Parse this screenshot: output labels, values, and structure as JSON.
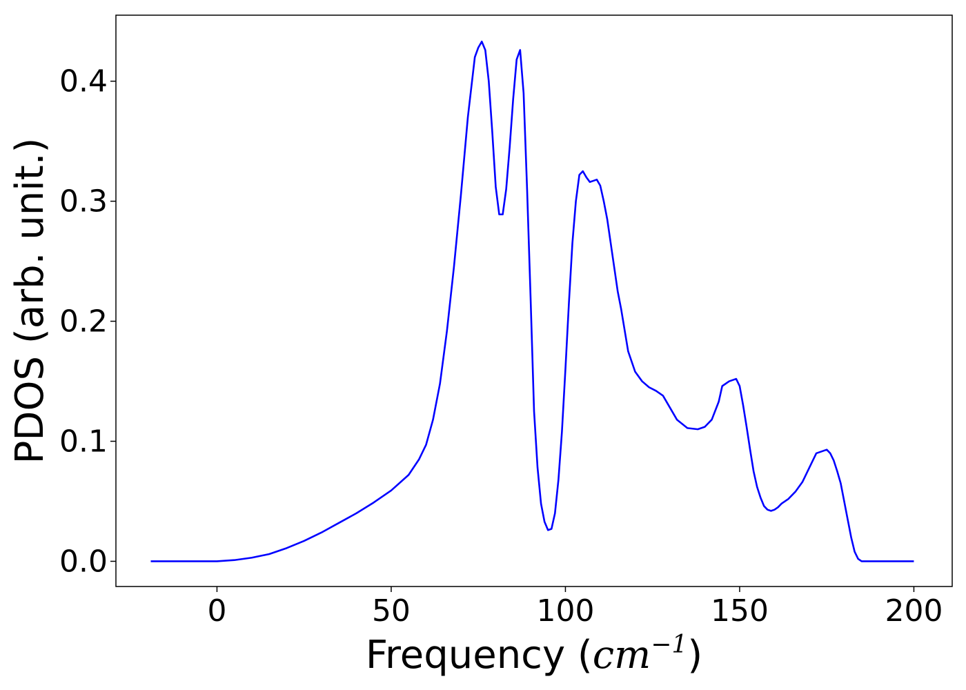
{
  "chart_data": {
    "type": "line",
    "xlabel_prefix": "Frequency (",
    "xlabel_unit_base": "cm",
    "xlabel_unit_exp": "−1",
    "xlabel_suffix": ")",
    "ylabel": "PDOS (arb. unit.)",
    "xlim": [
      -29,
      211
    ],
    "ylim": [
      -0.021,
      0.455
    ],
    "xticks": [
      0,
      50,
      100,
      150,
      200
    ],
    "xtick_labels": [
      "0",
      "50",
      "100",
      "150",
      "200"
    ],
    "yticks": [
      0.0,
      0.1,
      0.2,
      0.3,
      0.4
    ],
    "ytick_labels": [
      "0.0",
      "0.1",
      "0.2",
      "0.3",
      "0.4"
    ],
    "grid": false,
    "series": [
      {
        "color": "#0000ff",
        "x": [
          -19,
          0,
          5,
          10,
          15,
          20,
          25,
          30,
          35,
          40,
          45,
          50,
          55,
          58,
          60,
          62,
          64,
          66,
          68,
          70,
          72,
          74,
          75,
          76,
          77,
          78,
          79,
          80,
          81,
          82,
          83,
          84,
          85,
          86,
          87,
          88,
          89,
          90,
          91,
          92,
          93,
          94,
          95,
          96,
          97,
          98,
          99,
          100,
          101,
          102,
          103,
          104,
          105,
          106,
          107,
          108,
          109,
          110,
          111,
          112,
          113,
          114,
          115,
          116,
          118,
          120,
          122,
          124,
          126,
          128,
          130,
          132,
          135,
          138,
          140,
          142,
          144,
          145,
          147,
          149,
          150,
          151,
          152,
          153,
          154,
          155,
          156,
          157,
          158,
          159,
          160,
          161,
          162,
          164,
          166,
          168,
          170,
          172,
          174,
          175,
          176,
          177,
          178,
          179,
          180,
          181,
          182,
          183,
          184,
          185,
          186,
          188,
          190,
          195,
          200
        ],
        "y": [
          0.0,
          0.0,
          0.001,
          0.003,
          0.006,
          0.011,
          0.017,
          0.024,
          0.032,
          0.04,
          0.049,
          0.059,
          0.072,
          0.085,
          0.097,
          0.118,
          0.148,
          0.192,
          0.245,
          0.305,
          0.37,
          0.42,
          0.428,
          0.433,
          0.426,
          0.4,
          0.358,
          0.312,
          0.289,
          0.289,
          0.31,
          0.345,
          0.385,
          0.418,
          0.426,
          0.39,
          0.31,
          0.22,
          0.125,
          0.078,
          0.048,
          0.033,
          0.026,
          0.027,
          0.04,
          0.068,
          0.108,
          0.16,
          0.215,
          0.265,
          0.3,
          0.322,
          0.325,
          0.32,
          0.316,
          0.317,
          0.318,
          0.313,
          0.3,
          0.285,
          0.265,
          0.245,
          0.225,
          0.21,
          0.175,
          0.158,
          0.15,
          0.145,
          0.142,
          0.138,
          0.128,
          0.118,
          0.111,
          0.11,
          0.112,
          0.118,
          0.133,
          0.146,
          0.15,
          0.152,
          0.146,
          0.13,
          0.112,
          0.093,
          0.075,
          0.062,
          0.053,
          0.046,
          0.043,
          0.042,
          0.043,
          0.045,
          0.048,
          0.052,
          0.058,
          0.066,
          0.078,
          0.09,
          0.092,
          0.093,
          0.09,
          0.084,
          0.075,
          0.065,
          0.05,
          0.035,
          0.02,
          0.008,
          0.002,
          0.0,
          0.0,
          0.0,
          0.0,
          0.0,
          0.0
        ]
      }
    ]
  }
}
